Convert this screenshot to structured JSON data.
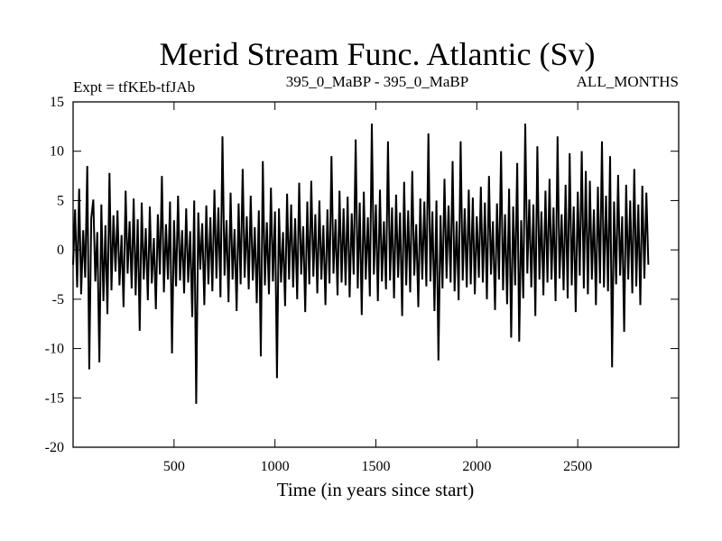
{
  "chart_data": {
    "type": "line",
    "title": "Merid Stream Func. Atlantic (Sv)",
    "subtitle_left": "Expt = tfKEb-tfJAb",
    "subtitle_center": "395_0_MaBP - 395_0_MaBP",
    "subtitle_right": "ALL_MONTHS",
    "xlabel": "Time (in years since start)",
    "ylabel": "",
    "xlim": [
      0,
      3000
    ],
    "ylim": [
      -20,
      15
    ],
    "x_ticks": [
      500,
      1000,
      1500,
      2000,
      2500
    ],
    "y_ticks": [
      15,
      10,
      5,
      0,
      -5,
      -10,
      -15,
      -20
    ],
    "grid": false,
    "legend": "none",
    "color": "#000000",
    "series": [
      {
        "x_start": 0,
        "x_step": 10,
        "y": [
          -1.5,
          4.1,
          -3.8,
          6.2,
          -4.5,
          2.0,
          -2.8,
          8.5,
          -12.1,
          3.2,
          5.1,
          -3.2,
          1.8,
          -11.4,
          4.6,
          -5.2,
          2.5,
          -6.5,
          7.8,
          -4.1,
          3.5,
          -2.2,
          4.0,
          -3.6,
          1.5,
          -5.8,
          6.0,
          -2.4,
          2.9,
          -3.9,
          5.2,
          -4.6,
          3.1,
          -8.2,
          4.8,
          -3.0,
          2.2,
          -5.1,
          4.4,
          -3.4,
          1.2,
          -6.0,
          3.6,
          -2.5,
          7.5,
          -4.3,
          2.6,
          -3.0,
          4.9,
          -10.5,
          3.0,
          -3.7,
          5.5,
          -3.1,
          2.0,
          -4.4,
          4.2,
          -3.3,
          1.9,
          -6.8,
          5.0,
          -15.6,
          3.8,
          -2.0,
          2.7,
          -5.6,
          4.5,
          -3.5,
          3.3,
          -4.2,
          6.1,
          -2.9,
          4.3,
          -4.8,
          11.5,
          -2.6,
          3.0,
          -5.3,
          5.8,
          -3.0,
          2.1,
          -6.2,
          4.7,
          -3.5,
          8.2,
          -2.8,
          3.4,
          -4.0,
          5.5,
          -3.1,
          2.3,
          -5.4,
          4.0,
          -10.8,
          9.0,
          -3.6,
          2.8,
          -4.5,
          6.3,
          -3.2,
          3.9,
          -13.0,
          4.2,
          -3.3,
          1.8,
          -5.7,
          5.7,
          -3.0,
          4.6,
          -3.8,
          3.2,
          -5.0,
          6.8,
          -2.5,
          2.4,
          -6.3,
          4.9,
          -3.5,
          7.0,
          -2.7,
          3.6,
          -4.4,
          5.0,
          -3.0,
          2.5,
          -5.6,
          4.1,
          -3.4,
          9.5,
          -2.4,
          3.1,
          -4.6,
          6.0,
          -3.3,
          4.2,
          -3.6,
          5.4,
          -4.8,
          3.7,
          -2.5,
          11.2,
          -3.9,
          4.8,
          -6.6,
          5.9,
          -3.0,
          3.3,
          -4.7,
          12.8,
          -2.5,
          4.6,
          -5.2,
          6.1,
          -3.2,
          2.9,
          -4.0,
          11.0,
          -3.1,
          4.3,
          -4.9,
          5.6,
          -2.8,
          3.8,
          -6.7,
          6.9,
          -3.6,
          4.0,
          -4.3,
          8.0,
          -2.6,
          2.6,
          -5.8,
          5.2,
          -3.0,
          4.9,
          -3.7,
          11.8,
          -3.2,
          3.9,
          -6.2,
          5.0,
          -11.2,
          3.5,
          -3.9,
          7.2,
          -2.9,
          4.5,
          -3.3,
          9.0,
          -4.2,
          2.9,
          -5.1,
          11.0,
          -3.1,
          4.2,
          -3.8,
          6.1,
          -3.5,
          5.3,
          -4.5,
          3.4,
          -2.8,
          6.4,
          -3.3,
          4.8,
          -5.0,
          7.5,
          -2.5,
          2.9,
          -6.1,
          4.7,
          -3.0,
          10.0,
          -4.1,
          3.6,
          -5.5,
          6.2,
          -8.9,
          4.4,
          -3.6,
          8.8,
          -9.3,
          3.0,
          -4.9,
          12.8,
          -2.4,
          5.1,
          -3.8,
          4.6,
          -6.7,
          10.5,
          -3.0,
          3.9,
          -4.6,
          6.0,
          -3.3,
          7.2,
          -3.0,
          4.3,
          -5.2,
          11.5,
          -2.9,
          3.6,
          -4.1,
          6.6,
          -4.9,
          9.8,
          -3.6,
          4.4,
          -6.3,
          5.9,
          -2.6,
          10.0,
          -3.9,
          8.0,
          -4.5,
          7.0,
          -3.0,
          4.1,
          -5.6,
          6.4,
          -3.4,
          11.0,
          -3.8,
          5.5,
          -4.2,
          9.5,
          -11.9,
          4.9,
          -3.5,
          7.6,
          -2.6,
          3.4,
          -8.3,
          6.6,
          -3.0,
          5.0,
          -4.4,
          8.2,
          -3.7,
          4.6,
          -5.6,
          6.5,
          -2.9,
          5.8,
          -1.5
        ]
      }
    ]
  }
}
